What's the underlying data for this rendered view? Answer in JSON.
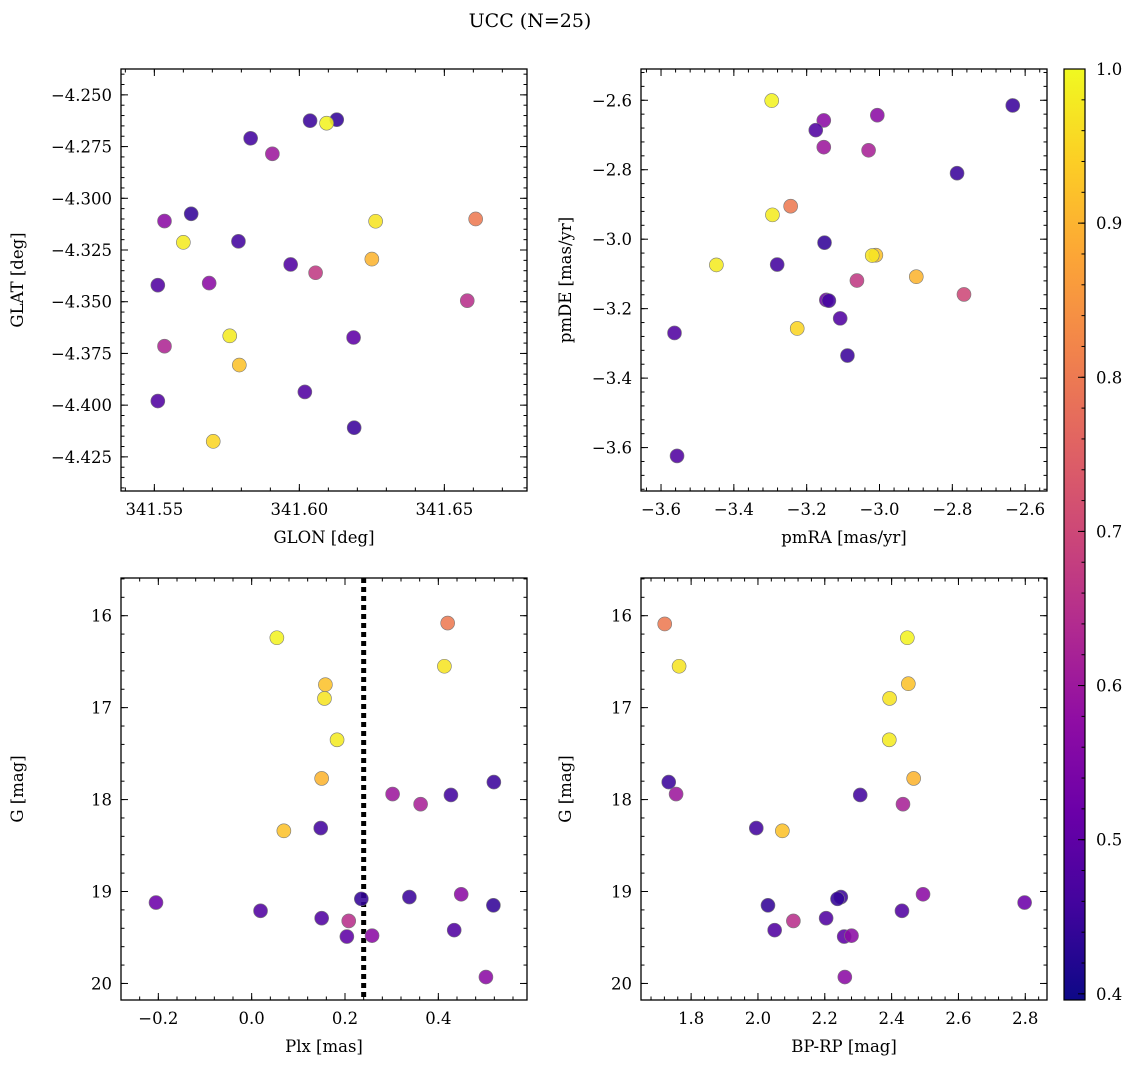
{
  "title": "UCC (N=25)",
  "chart_data": [
    {
      "id": "glon-glat",
      "type": "scatter",
      "xlabel": "GLON [deg]",
      "ylabel": "GLAT [deg]",
      "xlim": [
        341.5385,
        341.6785
      ],
      "ylim": [
        -4.4415,
        -4.2375
      ],
      "y_inverted": false,
      "xticks": [
        341.55,
        341.6,
        341.65
      ],
      "xtick_labels": [
        "341.55",
        "341.60",
        "341.65"
      ],
      "yticks": [
        -4.25,
        -4.275,
        -4.3,
        -4.325,
        -4.35,
        -4.375,
        -4.4,
        -4.425
      ],
      "ytick_labels": [
        "−4.250",
        "−4.275",
        "−4.300",
        "−4.325",
        "−4.350",
        "−4.375",
        "−4.400",
        "−4.425"
      ],
      "points": [
        {
          "x": 341.6129,
          "y": -4.262,
          "c": 0.44
        },
        {
          "x": 341.6094,
          "y": -4.2637,
          "c": 0.99
        },
        {
          "x": 341.6037,
          "y": -4.2625,
          "c": 0.45
        },
        {
          "x": 341.5832,
          "y": -4.271,
          "c": 0.46
        },
        {
          "x": 341.5907,
          "y": -4.2785,
          "c": 0.6
        },
        {
          "x": 341.5627,
          "y": -4.3075,
          "c": 0.44
        },
        {
          "x": 341.5535,
          "y": -4.311,
          "c": 0.57
        },
        {
          "x": 341.6263,
          "y": -4.3111,
          "c": 0.97
        },
        {
          "x": 341.6608,
          "y": -4.31,
          "c": 0.8
        },
        {
          "x": 341.579,
          "y": -4.3208,
          "c": 0.46
        },
        {
          "x": 341.56,
          "y": -4.3213,
          "c": 0.98
        },
        {
          "x": 341.597,
          "y": -4.332,
          "c": 0.48
        },
        {
          "x": 341.625,
          "y": -4.3294,
          "c": 0.9
        },
        {
          "x": 341.6056,
          "y": -4.336,
          "c": 0.67
        },
        {
          "x": 341.5689,
          "y": -4.341,
          "c": 0.57
        },
        {
          "x": 341.5512,
          "y": -4.342,
          "c": 0.48
        },
        {
          "x": 341.6579,
          "y": -4.3495,
          "c": 0.65
        },
        {
          "x": 341.576,
          "y": -4.3665,
          "c": 0.98
        },
        {
          "x": 341.6187,
          "y": -4.3673,
          "c": 0.5
        },
        {
          "x": 341.5535,
          "y": -4.3715,
          "c": 0.63
        },
        {
          "x": 341.5793,
          "y": -4.3806,
          "c": 0.92
        },
        {
          "x": 341.6019,
          "y": -4.3936,
          "c": 0.48
        },
        {
          "x": 341.5512,
          "y": -4.398,
          "c": 0.48
        },
        {
          "x": 341.6189,
          "y": -4.4109,
          "c": 0.45
        },
        {
          "x": 341.5703,
          "y": -4.4175,
          "c": 0.95
        }
      ]
    },
    {
      "id": "pmra-pmde",
      "type": "scatter",
      "xlabel": "pmRA [mas/yr]",
      "ylabel": "pmDE [mas/yr]",
      "xlim": [
        -3.655,
        -2.54
      ],
      "ylim": [
        -3.725,
        -2.51
      ],
      "y_inverted": false,
      "xticks": [
        -3.6,
        -3.4,
        -3.2,
        -3.0,
        -2.8,
        -2.6
      ],
      "xtick_labels": [
        "−3.6",
        "−3.4",
        "−3.2",
        "−3.0",
        "−2.8",
        "−2.6"
      ],
      "yticks": [
        -2.6,
        -2.8,
        -3.0,
        -3.2,
        -3.4,
        -3.6
      ],
      "ytick_labels": [
        "−2.6",
        "−2.8",
        "−3.0",
        "−3.2",
        "−3.4",
        "−3.6"
      ],
      "points": [
        {
          "x": -3.296,
          "y": -2.601,
          "c": 0.99
        },
        {
          "x": -2.634,
          "y": -2.615,
          "c": 0.45
        },
        {
          "x": -3.153,
          "y": -2.658,
          "c": 0.57
        },
        {
          "x": -3.006,
          "y": -2.643,
          "c": 0.57
        },
        {
          "x": -3.175,
          "y": -2.686,
          "c": 0.48
        },
        {
          "x": -3.153,
          "y": -2.735,
          "c": 0.6
        },
        {
          "x": -3.03,
          "y": -2.744,
          "c": 0.62
        },
        {
          "x": -2.787,
          "y": -2.81,
          "c": 0.45
        },
        {
          "x": -3.244,
          "y": -2.905,
          "c": 0.8
        },
        {
          "x": -3.294,
          "y": -2.93,
          "c": 0.98
        },
        {
          "x": -3.151,
          "y": -3.01,
          "c": 0.44
        },
        {
          "x": -3.01,
          "y": -3.046,
          "c": 0.92
        },
        {
          "x": -3.02,
          "y": -3.047,
          "c": 0.97
        },
        {
          "x": -3.281,
          "y": -3.073,
          "c": 0.46
        },
        {
          "x": -3.448,
          "y": -3.074,
          "c": 0.98
        },
        {
          "x": -2.899,
          "y": -3.108,
          "c": 0.9
        },
        {
          "x": -3.062,
          "y": -3.119,
          "c": 0.67
        },
        {
          "x": -2.768,
          "y": -3.159,
          "c": 0.7
        },
        {
          "x": -3.146,
          "y": -3.175,
          "c": 0.52
        },
        {
          "x": -3.139,
          "y": -3.177,
          "c": 0.46
        },
        {
          "x": -3.108,
          "y": -3.228,
          "c": 0.48
        },
        {
          "x": -3.226,
          "y": -3.257,
          "c": 0.95
        },
        {
          "x": -3.563,
          "y": -3.27,
          "c": 0.48
        },
        {
          "x": -3.088,
          "y": -3.335,
          "c": 0.45
        },
        {
          "x": -3.556,
          "y": -3.624,
          "c": 0.48
        }
      ]
    },
    {
      "id": "plx-g",
      "type": "scatter",
      "xlabel": "Plx [mas]",
      "ylabel": "G [mag]",
      "xlim": [
        -0.28,
        0.59
      ],
      "ylim": [
        15.59,
        20.18
      ],
      "y_inverted": true,
      "xticks": [
        -0.2,
        0.0,
        0.2,
        0.4
      ],
      "xtick_labels": [
        "−0.2",
        "0.0",
        "0.2",
        "0.4"
      ],
      "yticks": [
        16,
        17,
        18,
        19,
        20
      ],
      "ytick_labels": [
        "16",
        "17",
        "18",
        "19",
        "20"
      ],
      "vline": {
        "x": 0.24,
        "style": "dotted"
      },
      "points": [
        {
          "x": 0.42,
          "y": 16.08,
          "c": 0.8
        },
        {
          "x": 0.054,
          "y": 16.24,
          "c": 0.99
        },
        {
          "x": 0.413,
          "y": 16.55,
          "c": 0.97
        },
        {
          "x": 0.158,
          "y": 16.75,
          "c": 0.92
        },
        {
          "x": 0.156,
          "y": 16.9,
          "c": 0.97
        },
        {
          "x": 0.183,
          "y": 17.35,
          "c": 0.98
        },
        {
          "x": 0.15,
          "y": 17.77,
          "c": 0.9
        },
        {
          "x": 0.519,
          "y": 17.81,
          "c": 0.45
        },
        {
          "x": 0.302,
          "y": 17.94,
          "c": 0.6
        },
        {
          "x": 0.427,
          "y": 17.95,
          "c": 0.46
        },
        {
          "x": 0.362,
          "y": 18.05,
          "c": 0.62
        },
        {
          "x": 0.148,
          "y": 18.31,
          "c": 0.46
        },
        {
          "x": 0.069,
          "y": 18.34,
          "c": 0.92
        },
        {
          "x": 0.449,
          "y": 19.03,
          "c": 0.57
        },
        {
          "x": 0.338,
          "y": 19.06,
          "c": 0.45
        },
        {
          "x": 0.235,
          "y": 19.08,
          "c": 0.44
        },
        {
          "x": -0.205,
          "y": 19.12,
          "c": 0.52
        },
        {
          "x": 0.518,
          "y": 19.15,
          "c": 0.44
        },
        {
          "x": 0.019,
          "y": 19.21,
          "c": 0.48
        },
        {
          "x": 0.15,
          "y": 19.29,
          "c": 0.48
        },
        {
          "x": 0.208,
          "y": 19.32,
          "c": 0.65
        },
        {
          "x": 0.434,
          "y": 19.42,
          "c": 0.48
        },
        {
          "x": 0.204,
          "y": 19.49,
          "c": 0.5
        },
        {
          "x": 0.258,
          "y": 19.48,
          "c": 0.57
        },
        {
          "x": 0.502,
          "y": 19.93,
          "c": 0.57
        }
      ]
    },
    {
      "id": "bprp-g",
      "type": "scatter",
      "xlabel": "BP-RP [mag]",
      "ylabel": "G [mag]",
      "xlim": [
        1.65,
        2.865
      ],
      "ylim": [
        15.59,
        20.18
      ],
      "y_inverted": true,
      "xticks": [
        1.8,
        2.0,
        2.2,
        2.4,
        2.6,
        2.8
      ],
      "xtick_labels": [
        "1.8",
        "2.0",
        "2.2",
        "2.4",
        "2.6",
        "2.8"
      ],
      "yticks": [
        16,
        17,
        18,
        19,
        20
      ],
      "ytick_labels": [
        "16",
        "17",
        "18",
        "19",
        "20"
      ],
      "points": [
        {
          "x": 1.721,
          "y": 16.09,
          "c": 0.8
        },
        {
          "x": 2.447,
          "y": 16.24,
          "c": 0.99
        },
        {
          "x": 1.764,
          "y": 16.55,
          "c": 0.97
        },
        {
          "x": 2.45,
          "y": 16.74,
          "c": 0.92
        },
        {
          "x": 2.394,
          "y": 16.9,
          "c": 0.97
        },
        {
          "x": 2.393,
          "y": 17.35,
          "c": 0.98
        },
        {
          "x": 2.466,
          "y": 17.77,
          "c": 0.9
        },
        {
          "x": 1.733,
          "y": 17.81,
          "c": 0.45
        },
        {
          "x": 1.755,
          "y": 17.94,
          "c": 0.6
        },
        {
          "x": 2.306,
          "y": 17.95,
          "c": 0.46
        },
        {
          "x": 2.434,
          "y": 18.05,
          "c": 0.62
        },
        {
          "x": 1.995,
          "y": 18.31,
          "c": 0.46
        },
        {
          "x": 2.073,
          "y": 18.34,
          "c": 0.92
        },
        {
          "x": 2.494,
          "y": 19.03,
          "c": 0.57
        },
        {
          "x": 2.248,
          "y": 19.06,
          "c": 0.45
        },
        {
          "x": 2.238,
          "y": 19.08,
          "c": 0.44
        },
        {
          "x": 2.798,
          "y": 19.12,
          "c": 0.52
        },
        {
          "x": 2.03,
          "y": 19.15,
          "c": 0.44
        },
        {
          "x": 2.431,
          "y": 19.21,
          "c": 0.48
        },
        {
          "x": 2.204,
          "y": 19.29,
          "c": 0.48
        },
        {
          "x": 2.106,
          "y": 19.32,
          "c": 0.65
        },
        {
          "x": 2.05,
          "y": 19.42,
          "c": 0.48
        },
        {
          "x": 2.258,
          "y": 19.49,
          "c": 0.5
        },
        {
          "x": 2.28,
          "y": 19.48,
          "c": 0.57
        },
        {
          "x": 2.26,
          "y": 19.93,
          "c": 0.57
        }
      ]
    }
  ],
  "colorbar": {
    "colormap": "plasma",
    "range": [
      0.396,
      1.0
    ],
    "ticks": [
      1.0,
      0.9,
      0.8,
      0.7,
      0.6,
      0.5,
      0.4
    ],
    "tick_labels": [
      "1.0",
      "0.9",
      "0.8",
      "0.7",
      "0.6",
      "0.5",
      "0.4"
    ]
  }
}
